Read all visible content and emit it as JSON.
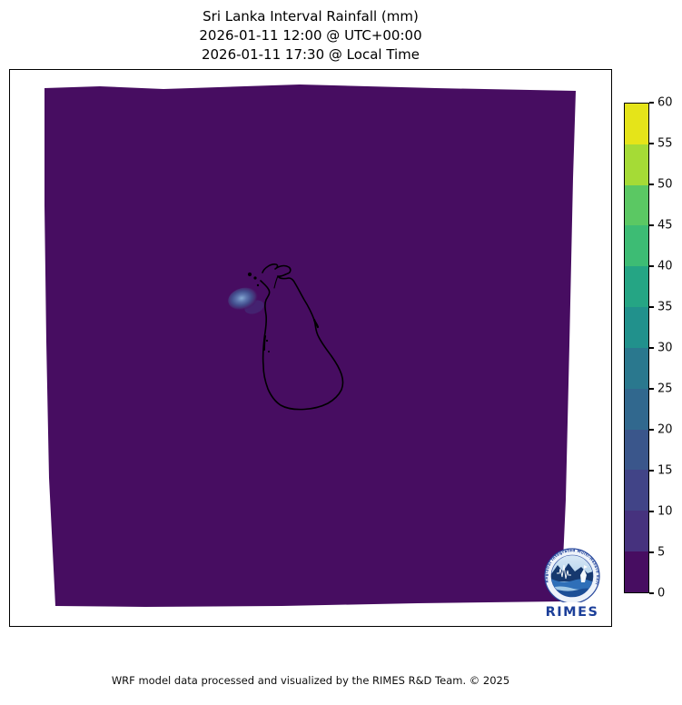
{
  "title": {
    "line1": "Sri Lanka Interval Rainfall (mm)",
    "line2": "2026-01-11 12:00 @ UTC+00:00",
    "line3": "2026-01-11 17:30 @ Local Time"
  },
  "footer": {
    "text": "WRF model data processed and visualized by the RIMES R&D Team. © 2025"
  },
  "colorbar": {
    "min": 0,
    "max": 60,
    "step": 5,
    "ticks": [
      0,
      5,
      10,
      15,
      20,
      25,
      30,
      35,
      40,
      45,
      50,
      55,
      60
    ],
    "band_colors": [
      "#470d61",
      "#46327e",
      "#414487",
      "#3a568b",
      "#31688e",
      "#2a788e",
      "#21918c",
      "#25a584",
      "#3dbc74",
      "#5bc863",
      "#a5db36",
      "#e5e419"
    ]
  },
  "map": {
    "region": "Sri Lanka",
    "domain_fill": "#470d61",
    "coastline_color": "#000000",
    "rain_cell_core": "#86a9d2",
    "rain_cell_mid": "#45518f"
  },
  "logo": {
    "name": "RIMES",
    "ring_text": "Regional Integrated Multi-Hazard Early Warning System",
    "text_color": "#1c3f99"
  },
  "chart_data": {
    "type": "heatmap",
    "title": "Sri Lanka Interval Rainfall (mm)",
    "valid_time_utc": "2026-01-11 12:00 @ UTC+00:00",
    "valid_time_local": "2026-01-11 17:30 @ Local Time",
    "units": "mm",
    "colormap": "viridis, discrete 12 bins",
    "levels": [
      0,
      5,
      10,
      15,
      20,
      25,
      30,
      35,
      40,
      45,
      50,
      55,
      60
    ],
    "legend_position": "right",
    "summary": "Nearly the entire WRF model domain shows 0–5 mm interval rainfall; a single small rain cell just west of the north-western Sri Lanka coastline peaks at roughly 10–15 mm."
  }
}
